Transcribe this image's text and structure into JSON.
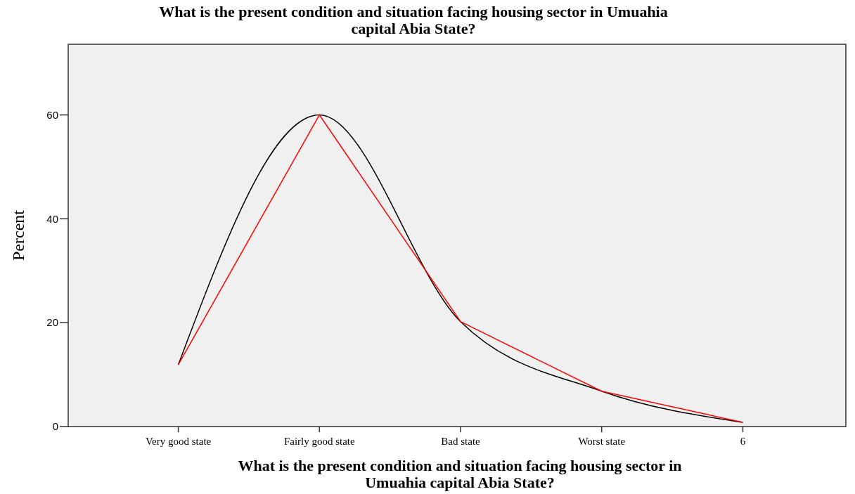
{
  "chart_data": {
    "type": "line",
    "title": "What is the present condition and situation facing housing sector in Umuahia\ncapital Abia State?",
    "xlabel": "What is the present condition and situation facing housing sector in\nUmuahia capital Abia State?",
    "ylabel": "Percent",
    "categories": [
      "Very good state",
      "Fairly good state",
      "Bad state",
      "Worst state",
      "6"
    ],
    "series": [
      {
        "color": "#000000",
        "values": [
          11.9,
          60,
          20.2,
          6.8,
          0.8
        ]
      },
      {
        "color": "#ff0000",
        "values": [
          11.9,
          60,
          20.2,
          6.8,
          0.8
        ]
      }
    ],
    "ylim": [
      0,
      73.6
    ],
    "yticks": [
      0,
      20,
      40,
      60
    ],
    "grid": false,
    "marker": "none"
  }
}
